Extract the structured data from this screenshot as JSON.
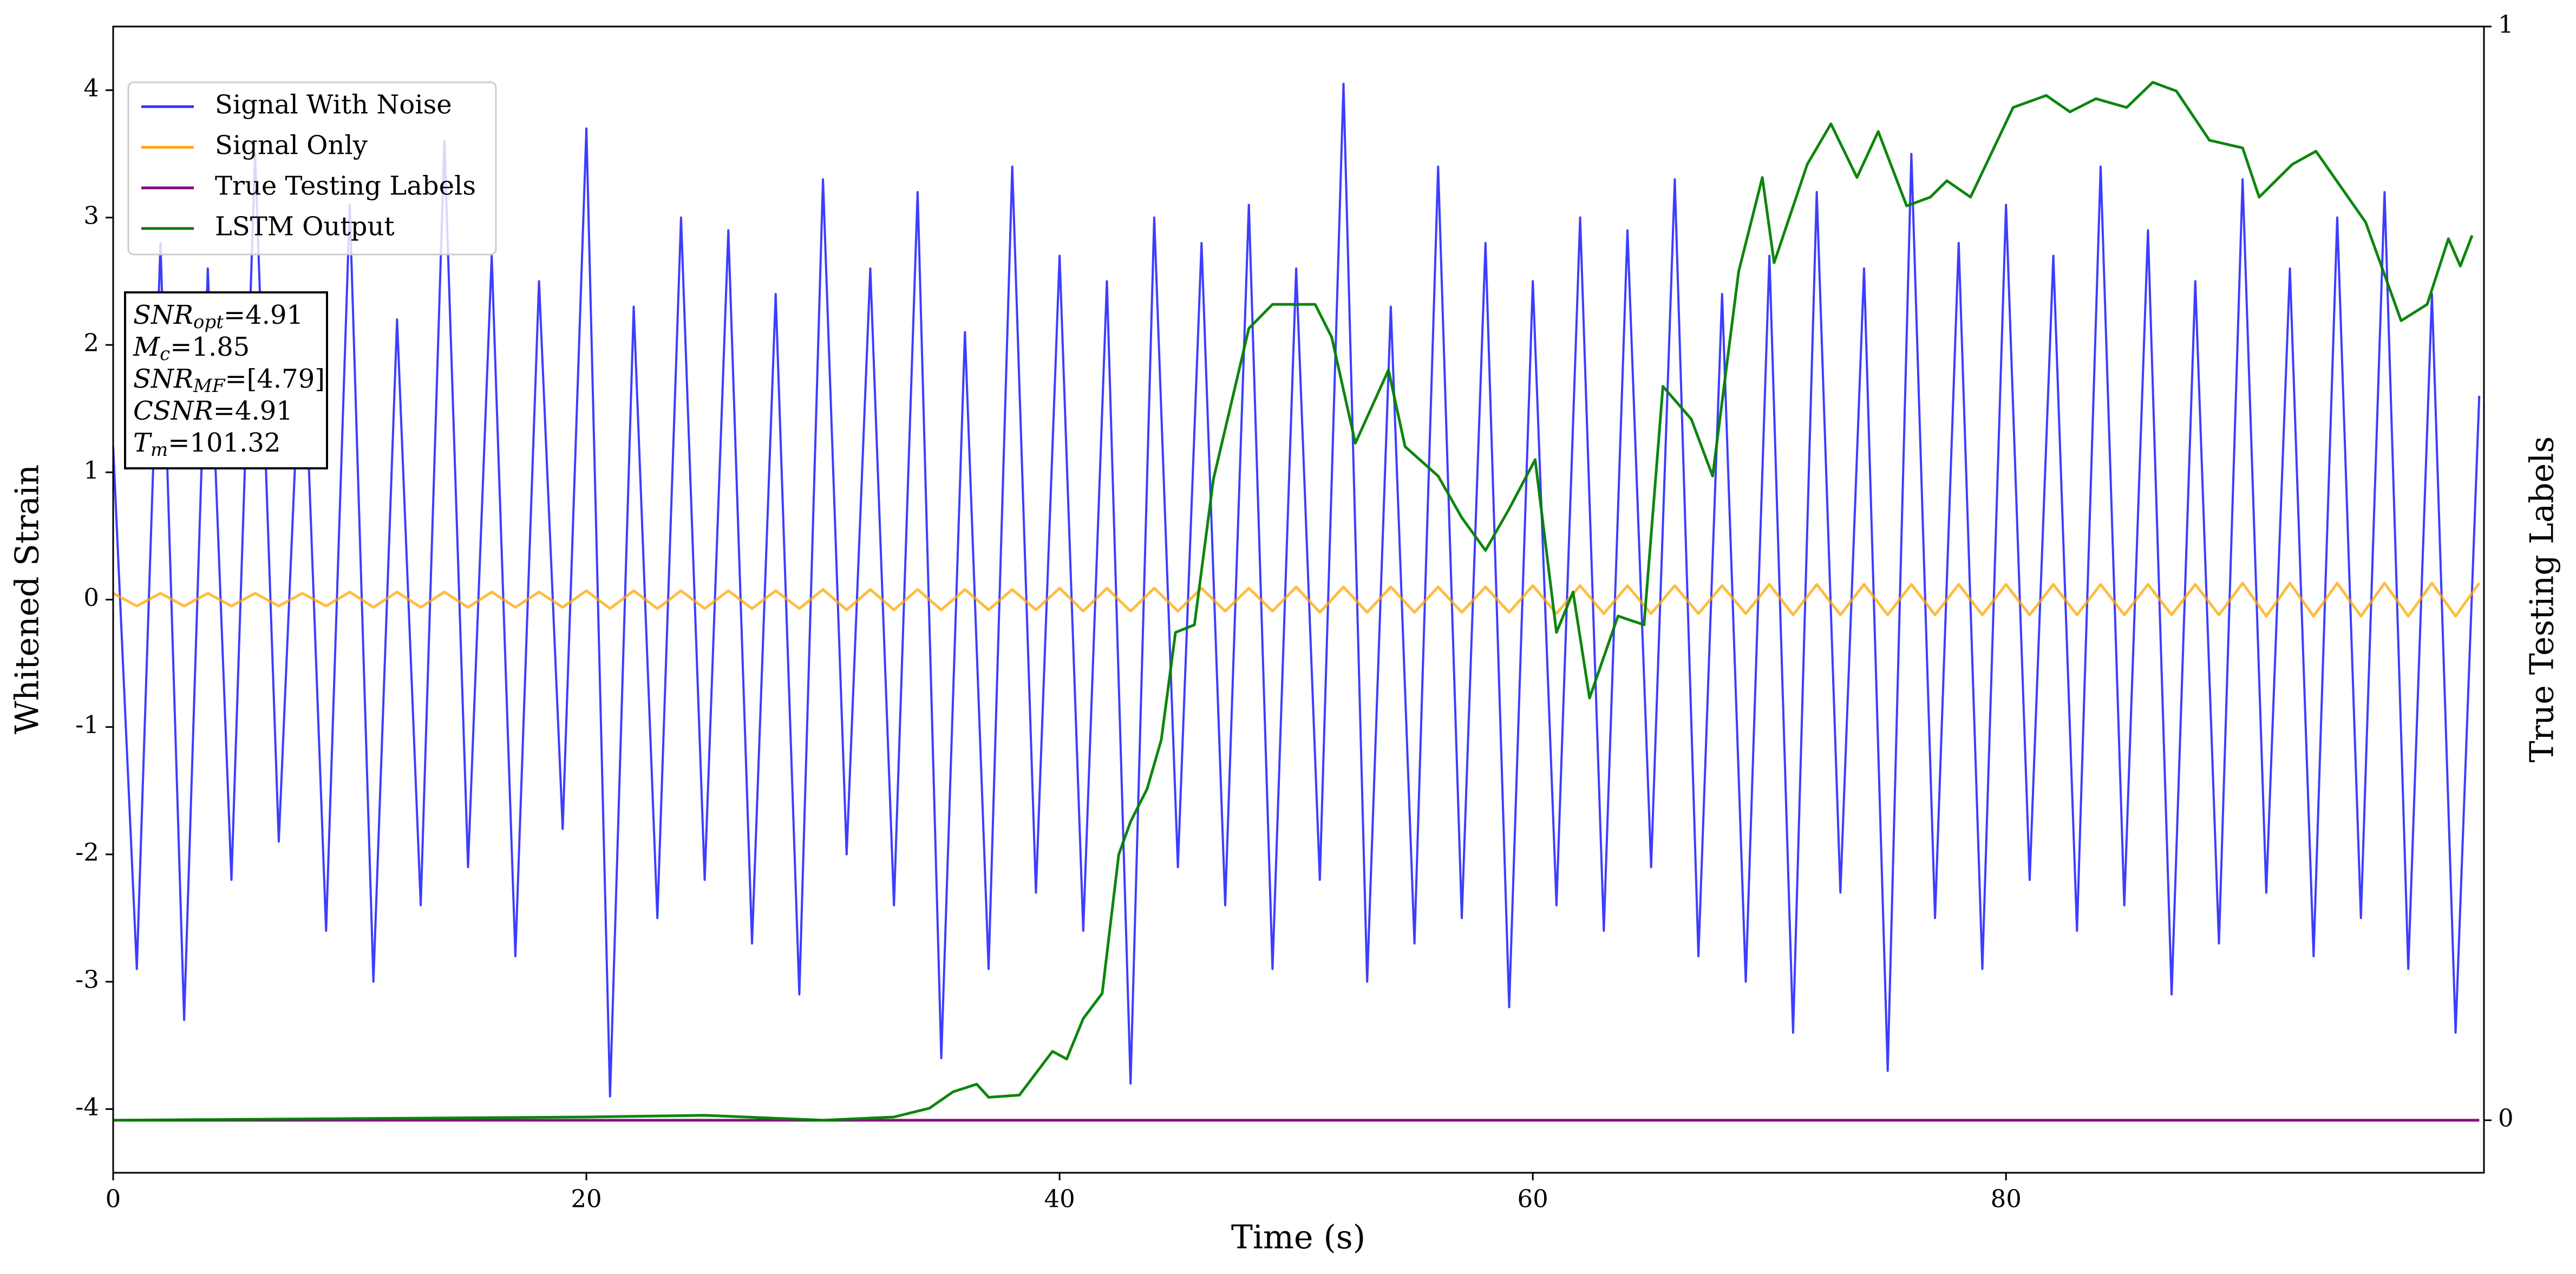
{
  "chart_data": {
    "type": "line",
    "x_label": "Time (s)",
    "y_label": "Whitened Strain",
    "y2_label": "True Testing Labels",
    "xlim": [
      0,
      100.2
    ],
    "xticks": [
      0,
      20,
      40,
      60,
      80
    ],
    "ylim": [
      -4.5,
      4.5
    ],
    "yticks": [
      -4,
      -3,
      -2,
      -1,
      0,
      1,
      2,
      3,
      4
    ],
    "y2lim": [
      -0.048,
      1
    ],
    "y2ticks": [
      0,
      1
    ],
    "legend": "upper left",
    "grid": false,
    "x": [
      0,
      1,
      2,
      3,
      4,
      5,
      6,
      7,
      8,
      9,
      10,
      11,
      12,
      13,
      14,
      15,
      16,
      17,
      18,
      19,
      20,
      21,
      22,
      23,
      24,
      25,
      26,
      27,
      28,
      29,
      30,
      31,
      32,
      33,
      34,
      35,
      36,
      37,
      38,
      39,
      40,
      41,
      42,
      43,
      44,
      45,
      46,
      47,
      48,
      49,
      50,
      51,
      52,
      53,
      54,
      55,
      56,
      57,
      58,
      59,
      60,
      61,
      62,
      63,
      64,
      65,
      66,
      67,
      68,
      69,
      70,
      71,
      72,
      73,
      74,
      75,
      76,
      77,
      78,
      79,
      80,
      81,
      82,
      83,
      84,
      85,
      86,
      87,
      88,
      89,
      90,
      91,
      92,
      93,
      94,
      95,
      96,
      97,
      98,
      99,
      100
    ],
    "series": [
      {
        "name": "Signal With Noise",
        "color": "#3333ff",
        "axis": "y",
        "values": [
          1.2,
          -2.9,
          2.8,
          -3.3,
          2.6,
          -2.2,
          3.5,
          -1.9,
          2.4,
          -2.6,
          3.1,
          -3.0,
          2.2,
          -2.4,
          3.6,
          -2.1,
          2.7,
          -2.8,
          2.5,
          -1.8,
          3.7,
          -3.9,
          2.3,
          -2.5,
          3.0,
          -2.2,
          2.9,
          -2.7,
          2.4,
          -3.1,
          3.3,
          -2.0,
          2.6,
          -2.4,
          3.2,
          -3.6,
          2.1,
          -2.9,
          3.4,
          -2.3,
          2.7,
          -2.6,
          2.5,
          -3.8,
          3.0,
          -2.1,
          2.8,
          -2.4,
          3.1,
          -2.9,
          2.6,
          -2.2,
          4.05,
          -3.0,
          2.3,
          -2.7,
          3.4,
          -2.5,
          2.8,
          -3.2,
          2.5,
          -2.4,
          3.0,
          -2.6,
          2.9,
          -2.1,
          3.3,
          -2.8,
          2.4,
          -3.0,
          2.7,
          -3.4,
          3.2,
          -2.3,
          2.6,
          -3.7,
          3.5,
          -2.5,
          2.8,
          -2.9,
          3.1,
          -2.2,
          2.7,
          -2.6,
          3.4,
          -2.4,
          2.9,
          -3.1,
          2.5,
          -2.7,
          3.3,
          -2.3,
          2.6,
          -2.8,
          3.0,
          -2.5,
          3.2,
          -2.9,
          2.4,
          -3.4,
          1.6
        ]
      },
      {
        "name": "Signal Only",
        "color": "#ffa500",
        "axis": "y",
        "values": [
          0.05,
          -0.05,
          0.05,
          -0.05,
          0.05,
          -0.05,
          0.05,
          -0.05,
          0.05,
          -0.05,
          0.06,
          -0.06,
          0.06,
          -0.06,
          0.06,
          -0.06,
          0.06,
          -0.06,
          0.06,
          -0.06,
          0.07,
          -0.07,
          0.07,
          -0.07,
          0.07,
          -0.07,
          0.07,
          -0.07,
          0.07,
          -0.07,
          0.08,
          -0.08,
          0.08,
          -0.08,
          0.08,
          -0.08,
          0.08,
          -0.08,
          0.08,
          -0.08,
          0.09,
          -0.09,
          0.09,
          -0.09,
          0.09,
          -0.09,
          0.09,
          -0.09,
          0.09,
          -0.09,
          0.1,
          -0.1,
          0.1,
          -0.1,
          0.1,
          -0.1,
          0.1,
          -0.1,
          0.1,
          -0.1,
          0.11,
          -0.11,
          0.11,
          -0.11,
          0.11,
          -0.11,
          0.11,
          -0.11,
          0.11,
          -0.11,
          0.12,
          -0.12,
          0.12,
          -0.12,
          0.12,
          -0.12,
          0.12,
          -0.12,
          0.12,
          -0.12,
          0.12,
          -0.12,
          0.12,
          -0.12,
          0.12,
          -0.12,
          0.12,
          -0.12,
          0.12,
          -0.12,
          0.13,
          -0.13,
          0.13,
          -0.13,
          0.13,
          -0.13,
          0.13,
          -0.13,
          0.13,
          -0.13,
          0.13
        ]
      },
      {
        "name": "True Testing Labels",
        "color": "#800080",
        "axis": "y2",
        "x": [
          0,
          100
        ],
        "values": [
          0,
          0
        ]
      },
      {
        "name": "LSTM Output",
        "color": "#008000",
        "axis": "y2",
        "x": [
          0,
          20,
          25,
          30,
          33,
          34.5,
          35.5,
          36.5,
          37,
          38.3,
          39.7,
          40.3,
          41,
          41.8,
          42.5,
          43,
          43.7,
          44.3,
          44.9,
          45.7,
          46.5,
          48,
          49,
          50.8,
          51.5,
          52.5,
          53.9,
          54.6,
          56,
          57,
          58,
          59,
          60.1,
          61,
          61.7,
          62.4,
          63.6,
          64.7,
          65.5,
          66.7,
          67.6,
          68.7,
          69.7,
          70.2,
          71.6,
          72.6,
          73.7,
          74.6,
          75.8,
          76.8,
          77.5,
          78.5,
          80.3,
          81.7,
          82.7,
          83.8,
          85.1,
          86.2,
          87.2,
          88.6,
          90,
          90.7,
          92.1,
          93.1,
          95.2,
          96.7,
          97.8,
          98.7,
          99.2,
          99.7
        ],
        "values": [
          0,
          0.003,
          0.0045,
          0,
          0.003,
          0.011,
          0.026,
          0.033,
          0.021,
          0.023,
          0.063,
          0.056,
          0.093,
          0.116,
          0.243,
          0.273,
          0.303,
          0.348,
          0.446,
          0.453,
          0.586,
          0.724,
          0.746,
          0.746,
          0.716,
          0.619,
          0.686,
          0.616,
          0.589,
          0.551,
          0.521,
          0.559,
          0.604,
          0.446,
          0.483,
          0.386,
          0.461,
          0.453,
          0.671,
          0.641,
          0.589,
          0.776,
          0.862,
          0.784,
          0.874,
          0.911,
          0.862,
          0.904,
          0.836,
          0.844,
          0.859,
          0.844,
          0.926,
          0.937,
          0.922,
          0.934,
          0.926,
          0.949,
          0.941,
          0.896,
          0.889,
          0.844,
          0.874,
          0.886,
          0.821,
          0.731,
          0.746,
          0.806,
          0.781,
          0.809
        ]
      }
    ],
    "annotations": [
      {
        "symbol": "SNR",
        "sub": "opt",
        "value": "=4.91"
      },
      {
        "symbol": "M",
        "sub": "c",
        "value": "=1.85"
      },
      {
        "symbol": "SNR",
        "sub": "MF",
        "value": "=[4.79]"
      },
      {
        "symbol": "CSNR",
        "value": "=4.91"
      },
      {
        "symbol": "T",
        "sub": "m",
        "value": "=101.32"
      }
    ]
  }
}
